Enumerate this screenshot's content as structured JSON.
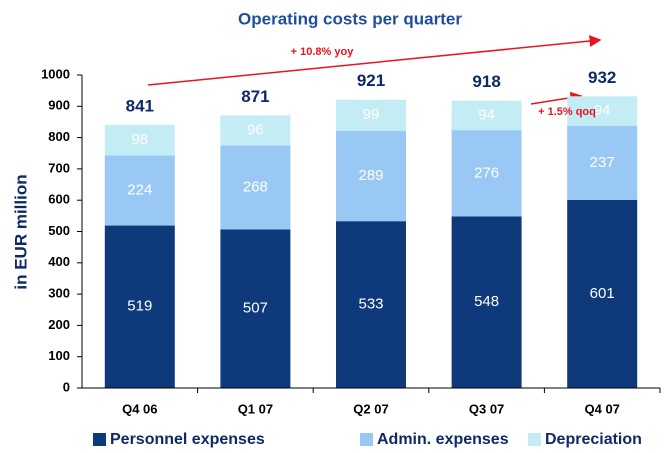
{
  "chart_data": {
    "type": "stacked_bar",
    "title": "Operating costs per quarter",
    "y_label": "in EUR million",
    "categories": [
      "Q4 06",
      "Q1 07",
      "Q2 07",
      "Q3 07",
      "Q4 07"
    ],
    "series": [
      {
        "name": "Personnel expenses",
        "color": "#0e3a7c",
        "values": [
          519,
          507,
          533,
          548,
          601
        ]
      },
      {
        "name": "Admin. expenses",
        "color": "#99c8f5",
        "values": [
          224,
          268,
          289,
          276,
          237
        ]
      },
      {
        "name": "Depreciation",
        "color": "#c4ecf5",
        "values": [
          98,
          96,
          99,
          94,
          94
        ]
      }
    ],
    "totals": [
      841,
      871,
      921,
      918,
      932
    ],
    "annotations": [
      "+ 10.8% yoy",
      "+ 1.5% qoq"
    ],
    "ylim": [
      0,
      1000
    ],
    "yticks": [
      0,
      100,
      200,
      300,
      400,
      500,
      600,
      700,
      800,
      900,
      1000
    ],
    "grid": false
  }
}
